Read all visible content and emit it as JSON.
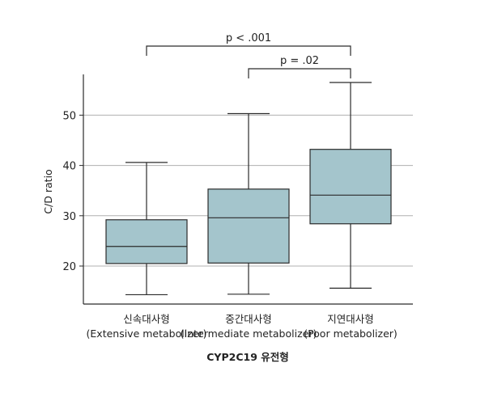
{
  "chart_data": {
    "type": "box",
    "ylabel": "C/D ratio",
    "xlabel": "CYP2C19 유전형",
    "ylim": [
      12,
      59
    ],
    "yticks": [
      20,
      30,
      40,
      50
    ],
    "grid": "horizontal",
    "colors": {
      "box_fill": "#a4c5cc",
      "line": "#2b2b2b",
      "grid": "#b0b0b0"
    },
    "categories": [
      {
        "name": "신속대사형",
        "sub": "(Extensive metabolizer)"
      },
      {
        "name": "중간대사형",
        "sub": "(Intermediate metabolizer)"
      },
      {
        "name": "지연대사형",
        "sub": "(Poor metabolizer)"
      }
    ],
    "boxes": [
      {
        "min": 14.3,
        "q1": 20.5,
        "median": 23.9,
        "q3": 29.2,
        "max": 40.6
      },
      {
        "min": 14.4,
        "q1": 20.6,
        "median": 29.6,
        "q3": 35.3,
        "max": 50.3
      },
      {
        "min": 15.6,
        "q1": 28.4,
        "median": 34.1,
        "q3": 43.2,
        "max": 56.5
      }
    ],
    "significance": [
      {
        "from": 0,
        "to": 2,
        "label": "p < .001"
      },
      {
        "from": 1,
        "to": 2,
        "label": "p = .02"
      }
    ]
  }
}
